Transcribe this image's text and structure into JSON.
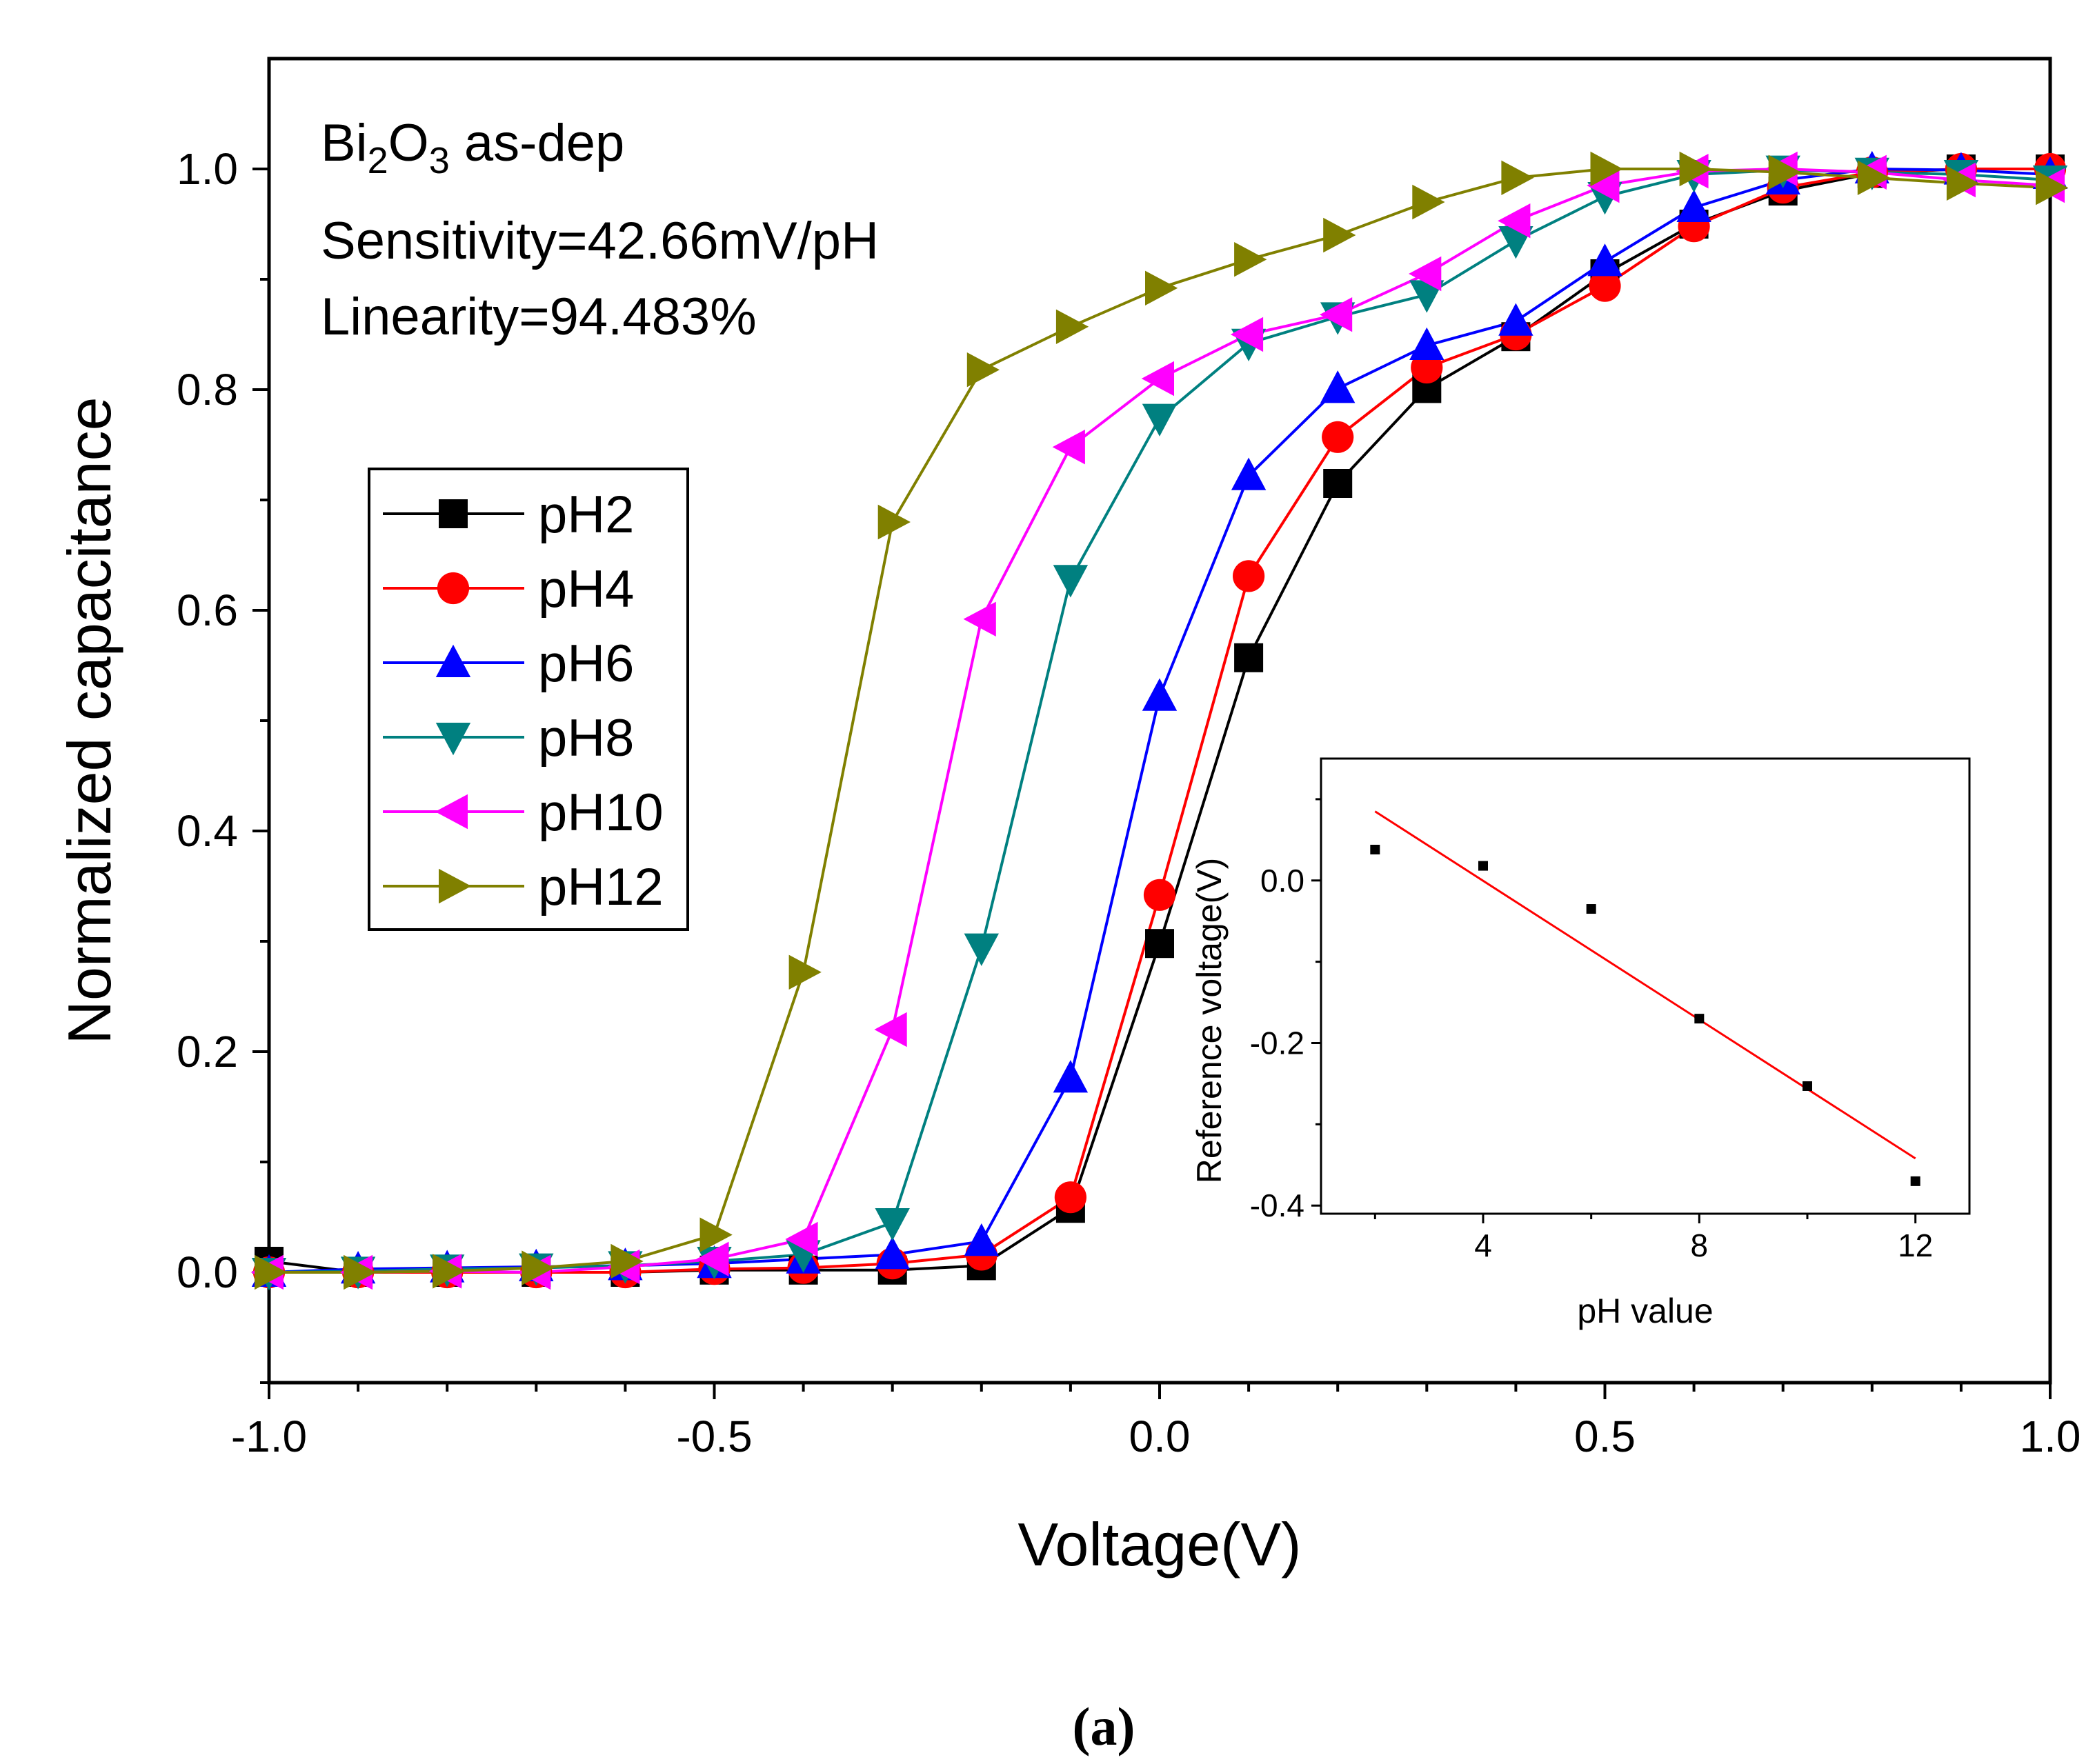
{
  "chart_data": [
    {
      "type": "line",
      "title": "",
      "xlabel": "Voltage(V)",
      "ylabel": "Normalized capacitance",
      "xlim": [
        -1.0,
        1.0
      ],
      "ylim": [
        -0.1,
        1.1
      ],
      "xticks": [
        "-1.0",
        "-0.5",
        "0.0",
        "0.5",
        "1.0"
      ],
      "yticks": [
        "0.0",
        "0.2",
        "0.4",
        "0.6",
        "0.8",
        "1.0"
      ],
      "x": [
        -1.0,
        -0.9,
        -0.8,
        -0.7,
        -0.6,
        -0.5,
        -0.4,
        -0.3,
        -0.2,
        -0.1,
        0.0,
        0.1,
        0.2,
        0.3,
        0.4,
        0.5,
        0.6,
        0.7,
        0.8,
        0.9,
        1.0
      ],
      "annotation": {
        "material_base": "Bi",
        "material_sub1": "2",
        "material_mid": "O",
        "material_sub2": "3",
        "material_rest": " as-dep",
        "sensitivity": "Sensitivity=42.66mV/pH",
        "linearity": "Linearity=94.483%"
      },
      "legend_position": "middle-left",
      "series": [
        {
          "name": "pH2",
          "color": "#000000",
          "marker": "square",
          "values": [
            0.01,
            0.0,
            0.0,
            0.0,
            0.0,
            0.002,
            0.002,
            0.002,
            0.006,
            0.058,
            0.298,
            0.557,
            0.715,
            0.801,
            0.848,
            0.905,
            0.95,
            0.98,
            0.996,
            1.0,
            1.0
          ]
        },
        {
          "name": "pH4",
          "color": "#ff0000",
          "marker": "circle",
          "values": [
            0.0,
            0.0,
            0.0,
            0.0,
            0.0,
            0.003,
            0.004,
            0.008,
            0.016,
            0.068,
            0.342,
            0.631,
            0.757,
            0.82,
            0.85,
            0.894,
            0.948,
            0.983,
            0.997,
            1.0,
            1.0
          ]
        },
        {
          "name": "pH6",
          "color": "#0000ff",
          "marker": "triangle-up",
          "values": [
            0.0,
            0.003,
            0.004,
            0.005,
            0.006,
            0.008,
            0.012,
            0.016,
            0.028,
            0.176,
            0.522,
            0.722,
            0.801,
            0.84,
            0.862,
            0.916,
            0.965,
            0.99,
            1.0,
            0.999,
            0.995
          ]
        },
        {
          "name": "pH8",
          "color": "#008080",
          "marker": "triangle-down",
          "values": [
            0.0,
            0.001,
            0.003,
            0.004,
            0.006,
            0.01,
            0.016,
            0.045,
            0.294,
            0.628,
            0.774,
            0.842,
            0.866,
            0.886,
            0.935,
            0.975,
            0.995,
            0.999,
            0.997,
            0.995,
            0.99
          ]
        },
        {
          "name": "pH10",
          "color": "#ff00ff",
          "marker": "triangle-left",
          "values": [
            0.0,
            0.0,
            0.001,
            0.0,
            0.005,
            0.012,
            0.03,
            0.22,
            0.592,
            0.748,
            0.81,
            0.85,
            0.868,
            0.905,
            0.953,
            0.985,
            0.998,
            1.0,
            0.997,
            0.99,
            0.985
          ]
        },
        {
          "name": "pH12",
          "color": "#808000",
          "marker": "triangle-right",
          "values": [
            0.0,
            0.0,
            0.001,
            0.004,
            0.01,
            0.034,
            0.272,
            0.68,
            0.818,
            0.857,
            0.892,
            0.918,
            0.94,
            0.97,
            0.992,
            1.0,
            1.0,
            0.997,
            0.992,
            0.987,
            0.983
          ]
        }
      ]
    },
    {
      "type": "scatter",
      "title": "",
      "xlabel": "pH value",
      "ylabel": "Reference voltage(V)",
      "xlim": [
        1.0,
        13.0
      ],
      "ylim": [
        -0.41,
        0.15
      ],
      "xticks": [
        "4",
        "8",
        "12"
      ],
      "yticks": [
        "0.0",
        "-0.2",
        "-0.4"
      ],
      "points": {
        "x": [
          2,
          4,
          6,
          8,
          10,
          12
        ],
        "y": [
          0.038,
          0.018,
          -0.035,
          -0.17,
          -0.253,
          -0.37
        ]
      },
      "fit_line": {
        "x": [
          2,
          12
        ],
        "y": [
          0.085,
          -0.342
        ],
        "color": "#ff0000"
      }
    }
  ],
  "caption": "(a)"
}
